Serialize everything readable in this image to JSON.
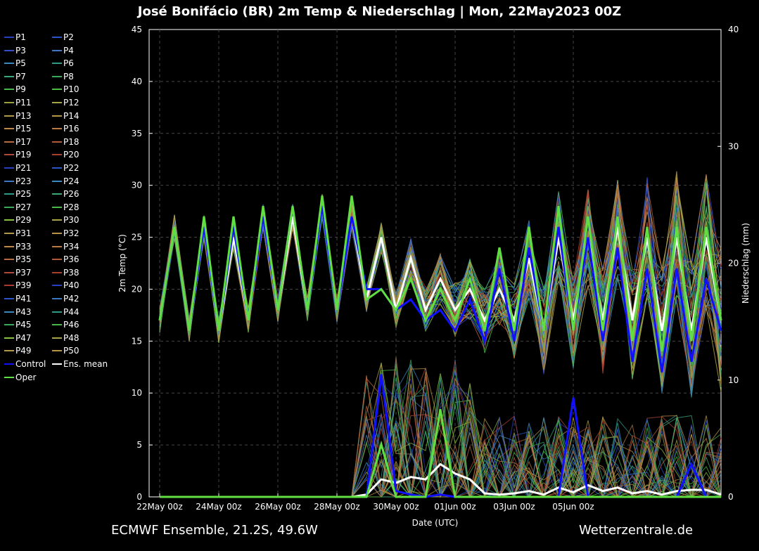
{
  "title": "José Bonifácio  (BR)  2m Temp & Niederschlag | Mon, 22May2023 00Z",
  "footer_left": "ECMWF Ensemble, 21.2S, 49.6W",
  "footer_right": "Wetterzentrale.de",
  "legend": [
    {
      "label": "P1",
      "color": "#2a3fbf"
    },
    {
      "label": "P2",
      "color": "#2a55c8"
    },
    {
      "label": "P3",
      "color": "#3050c8"
    },
    {
      "label": "P4",
      "color": "#3a78c0"
    },
    {
      "label": "P5",
      "color": "#3a88c0"
    },
    {
      "label": "P6",
      "color": "#2e9a8a"
    },
    {
      "label": "P7",
      "color": "#3aa878"
    },
    {
      "label": "P8",
      "color": "#3aaa5a"
    },
    {
      "label": "P9",
      "color": "#48b848"
    },
    {
      "label": "P10",
      "color": "#4cbc40"
    },
    {
      "label": "P11",
      "color": "#9aa040"
    },
    {
      "label": "P12",
      "color": "#a8a448"
    },
    {
      "label": "P13",
      "color": "#b09a48"
    },
    {
      "label": "P14",
      "color": "#b89448"
    },
    {
      "label": "P15",
      "color": "#c08848"
    },
    {
      "label": "P16",
      "color": "#b87a40"
    },
    {
      "label": "P17",
      "color": "#b86a40"
    },
    {
      "label": "P18",
      "color": "#b05a38"
    },
    {
      "label": "P19",
      "color": "#b04a38"
    },
    {
      "label": "P20",
      "color": "#a84030"
    },
    {
      "label": "P21",
      "color": "#2a3fbf"
    },
    {
      "label": "P22",
      "color": "#2a55c8"
    },
    {
      "label": "P23",
      "color": "#3a78c0"
    },
    {
      "label": "P24",
      "color": "#3a88c0"
    },
    {
      "label": "P25",
      "color": "#2e9a8a"
    },
    {
      "label": "P26",
      "color": "#3aa878"
    },
    {
      "label": "P27",
      "color": "#3aaa5a"
    },
    {
      "label": "P28",
      "color": "#48b848"
    },
    {
      "label": "P29",
      "color": "#8ac040"
    },
    {
      "label": "P30",
      "color": "#a8a448"
    },
    {
      "label": "P31",
      "color": "#b09a48"
    },
    {
      "label": "P32",
      "color": "#b89448"
    },
    {
      "label": "P33",
      "color": "#c08848"
    },
    {
      "label": "P34",
      "color": "#b87a40"
    },
    {
      "label": "P35",
      "color": "#b86a40"
    },
    {
      "label": "P36",
      "color": "#b05a38"
    },
    {
      "label": "P37",
      "color": "#b04a38"
    },
    {
      "label": "P38",
      "color": "#a84030"
    },
    {
      "label": "P39",
      "color": "#a83a30"
    },
    {
      "label": "P40",
      "color": "#2a3fbf"
    },
    {
      "label": "P41",
      "color": "#2a55c8"
    },
    {
      "label": "P42",
      "color": "#3a78c0"
    },
    {
      "label": "P43",
      "color": "#3a88c0"
    },
    {
      "label": "P44",
      "color": "#2e9a8a"
    },
    {
      "label": "P45",
      "color": "#3aaa5a"
    },
    {
      "label": "P46",
      "color": "#48b848"
    },
    {
      "label": "P47",
      "color": "#8ac040"
    },
    {
      "label": "P48",
      "color": "#a8a448"
    },
    {
      "label": "P49",
      "color": "#b09a48"
    },
    {
      "label": "P50",
      "color": "#b89448"
    },
    {
      "label": "Control",
      "color": "#1010ff"
    },
    {
      "label": "Ens. mean",
      "color": "#ffffff"
    },
    {
      "label": "Oper",
      "color": "#60e040"
    }
  ],
  "chart_data": {
    "type": "line",
    "title": "José Bonifácio  (BR)  2m Temp & Niederschlag | Mon, 22May2023 00Z",
    "xlabel": "Date (UTC)",
    "ylabel": "2m Temp (°C)",
    "ylabel_right": "Niederschlag (mm)",
    "ylim": [
      0,
      45
    ],
    "ylim_right": [
      0,
      40
    ],
    "yticks": [
      0,
      5,
      10,
      15,
      20,
      25,
      30,
      35,
      40,
      45
    ],
    "yticks_right": [
      0,
      10,
      20,
      30,
      40
    ],
    "xticks": [
      "22May 00z",
      "24May 00z",
      "26May 00z",
      "28May 00z",
      "30May 00z",
      "01Jun 00z",
      "03Jun 00z",
      "05Jun 00z"
    ],
    "grid": true,
    "x_hours_step": 12,
    "series": [
      {
        "name": "Ens. mean",
        "color": "#ffffff",
        "axis": "left",
        "values": [
          17,
          26,
          16,
          26,
          16,
          25,
          17,
          27,
          18,
          27,
          18,
          28,
          18,
          27,
          19,
          25,
          18,
          23,
          18,
          21,
          18,
          20,
          17,
          20,
          17,
          23,
          16,
          25,
          17,
          25,
          17,
          26,
          17,
          25,
          16,
          25,
          16,
          25,
          17
        ]
      },
      {
        "name": "Control",
        "color": "#1010ff",
        "axis": "left",
        "values": [
          17,
          26,
          16,
          26,
          16,
          26,
          17,
          27,
          18,
          28,
          18,
          28,
          18,
          27,
          20,
          20,
          18,
          19,
          17,
          18,
          16,
          19,
          15,
          22,
          15,
          24,
          16,
          26,
          16,
          25,
          15,
          24,
          13,
          22,
          12,
          22,
          13,
          21,
          16
        ]
      },
      {
        "name": "Oper",
        "color": "#60e040",
        "axis": "left",
        "values": [
          17,
          26,
          16,
          27,
          16,
          27,
          17,
          28,
          18,
          28,
          18,
          29,
          18,
          29,
          19,
          20,
          18,
          21,
          17,
          20,
          17,
          21,
          16,
          24,
          16,
          26,
          16,
          28,
          16,
          27,
          16,
          27,
          15,
          26,
          14,
          26,
          15,
          26,
          17
        ]
      },
      {
        "name": "Ens. mean",
        "color": "#ffffff",
        "axis": "right",
        "values": [
          0,
          0,
          0,
          0,
          0,
          0,
          0,
          0,
          0,
          0,
          0,
          0,
          0,
          0,
          0.2,
          1.5,
          1.2,
          1.7,
          1.5,
          2.8,
          2.0,
          1.5,
          0.3,
          0.2,
          0.3,
          0.5,
          0.2,
          0.8,
          0.4,
          1.0,
          0.5,
          0.8,
          0.3,
          0.5,
          0.2,
          0.5,
          0.6,
          0.6,
          0.2
        ]
      },
      {
        "name": "Control",
        "color": "#1010ff",
        "axis": "right",
        "values": [
          0,
          0,
          0,
          0,
          0,
          0,
          0,
          0,
          0,
          0,
          0,
          0,
          0,
          0,
          0,
          10.5,
          0.5,
          0.2,
          0,
          0.2,
          0,
          0,
          0,
          0,
          0,
          0,
          0,
          0,
          8.5,
          0,
          0,
          0,
          0,
          0,
          0,
          0,
          2.8,
          0,
          0
        ]
      },
      {
        "name": "Oper",
        "color": "#60e040",
        "axis": "right",
        "values": [
          0,
          0,
          0,
          0,
          0,
          0,
          0,
          0,
          0,
          0,
          0,
          0,
          0,
          0,
          0,
          4.5,
          0,
          0,
          0,
          7.5,
          0,
          0,
          0,
          0,
          0,
          0,
          0,
          0,
          0,
          0,
          0,
          0,
          0,
          0,
          0,
          0,
          0,
          0,
          0
        ]
      }
    ]
  }
}
